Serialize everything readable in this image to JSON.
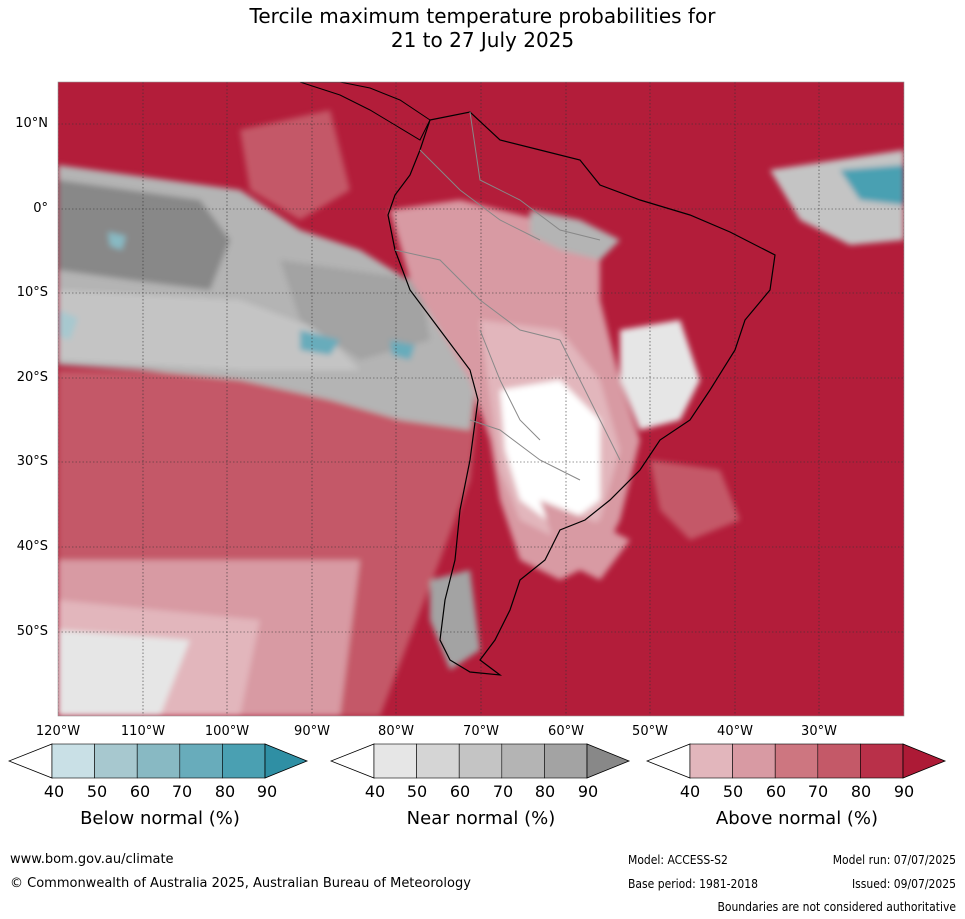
{
  "title_line1": "Tercile maximum temperature probabilities for",
  "title_line2": "21 to 27 July 2025",
  "lat_labels": [
    "10°N",
    "0°",
    "10°S",
    "20°S",
    "30°S",
    "40°S",
    "50°S"
  ],
  "lon_labels": [
    "120°W",
    "110°W",
    "100°W",
    "90°W",
    "80°W",
    "70°W",
    "60°W",
    "50°W",
    "40°W",
    "30°W"
  ],
  "colorbars": [
    {
      "title": "Below normal (%)",
      "ticks": [
        "40",
        "50",
        "60",
        "70",
        "80",
        "90"
      ],
      "colors": [
        "#c9e0e6",
        "#a7c8cf",
        "#88b9c3",
        "#68acbb",
        "#4aa0b2",
        "#2f8fa4"
      ]
    },
    {
      "title": "Near normal (%)",
      "ticks": [
        "40",
        "50",
        "60",
        "70",
        "80",
        "90"
      ],
      "colors": [
        "#e6e6e6",
        "#d5d5d5",
        "#c4c4c4",
        "#b4b4b4",
        "#a3a3a3",
        "#888888"
      ]
    },
    {
      "title": "Above normal (%)",
      "ticks": [
        "40",
        "50",
        "60",
        "70",
        "80",
        "90"
      ],
      "colors": [
        "#e2b6bc",
        "#d89aa3",
        "#cd7680",
        "#c45968",
        "#b93049",
        "#ad1a36"
      ]
    }
  ],
  "footer": {
    "website": "www.bom.gov.au/climate",
    "copyright": "© Commonwealth of Australia 2025, Australian Bureau of Meteorology",
    "model": "Model: ACCESS-S2",
    "model_run": "Model run: 07/07/2025",
    "base_period": "Base period: 1981-2018",
    "issued": "Issued: 09/07/2025",
    "disclaimer": "Boundaries are not considered authoritative"
  }
}
